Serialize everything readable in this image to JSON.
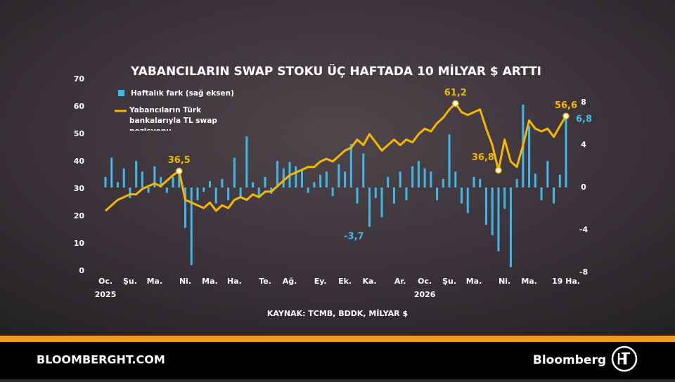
{
  "chart_data": {
    "type": "bar_line",
    "title": "YABANCILARIN SWAP STOKU ÜÇ HAFTADA 10 MİLYAR $ ARTTI",
    "source": "KAYNAK: TCMB, BDDK, MİLYAR $",
    "categories": [
      "Oc.\n2025",
      null,
      null,
      null,
      "Şu.",
      null,
      null,
      null,
      "Ma.",
      null,
      null,
      null,
      null,
      "Ni.",
      null,
      null,
      null,
      "Ma.",
      null,
      null,
      null,
      "Ha.",
      null,
      null,
      null,
      null,
      "Te.",
      null,
      null,
      null,
      "Ağ.",
      null,
      null,
      null,
      null,
      "Ey.",
      null,
      null,
      null,
      "Ek.",
      null,
      null,
      null,
      "Ka.",
      null,
      null,
      null,
      null,
      "Ar.",
      null,
      null,
      null,
      "Oc.\n2026",
      null,
      null,
      null,
      "Şu.",
      null,
      null,
      null,
      "Ma.",
      null,
      null,
      null,
      null,
      "Ni.",
      null,
      null,
      null,
      "Ma.",
      null,
      null,
      null,
      null,
      null,
      "19 Ha."
    ],
    "series": [
      {
        "name": "Haftalık fark (sağ eksen)",
        "kind": "bar",
        "axis": "y2",
        "color": "#3fb8ea",
        "values": [
          1,
          2.8,
          0.5,
          1.8,
          -1,
          2.5,
          1.5,
          -0.5,
          2,
          1,
          -0.5,
          1,
          1.5,
          -3.8,
          -7.3,
          -1.2,
          -0.4,
          0.6,
          -1.5,
          0.8,
          -1.2,
          2.8,
          -1,
          4.8,
          0.5,
          -0.8,
          1,
          -0.6,
          2.5,
          1.8,
          2.4,
          2,
          1.6,
          -0.5,
          0.5,
          1.2,
          1.5,
          -0.8,
          2.2,
          1.5,
          4.1,
          -1.5,
          3.2,
          -3.7,
          -1,
          -2.8,
          1,
          -1.5,
          1.5,
          -1.2,
          2,
          2.5,
          1.8,
          1.5,
          -1.2,
          0.8,
          5,
          1.5,
          -1.5,
          -2.4,
          1,
          0.8,
          -3.5,
          -4.5,
          -6,
          -2,
          -7.5,
          0.8,
          7.8,
          5.8,
          1.3,
          -1.2,
          2.5,
          -1.5,
          1.2,
          6.8
        ],
        "value_labels": [
          null,
          null,
          null,
          null,
          null,
          null,
          null,
          null,
          null,
          null,
          null,
          null,
          null,
          null,
          null,
          null,
          null,
          null,
          null,
          null,
          null,
          null,
          null,
          null,
          null,
          null,
          null,
          null,
          null,
          null,
          null,
          null,
          null,
          null,
          null,
          null,
          null,
          null,
          null,
          null,
          null,
          null,
          null,
          "-3,7",
          null,
          null,
          null,
          null,
          null,
          null,
          null,
          null,
          null,
          null,
          null,
          null,
          null,
          null,
          null,
          null,
          null,
          null,
          null,
          null,
          null,
          null,
          null,
          null,
          null,
          null,
          null,
          null,
          null,
          null,
          null,
          "6,8"
        ]
      },
      {
        "name": "Yabancıların Türk bankalarıyla TL swap pozisyonu",
        "kind": "line",
        "color": "#f5b700",
        "values": [
          22,
          24,
          26,
          27,
          28,
          28,
          30,
          31,
          32,
          31,
          33,
          35,
          36.5,
          26,
          25,
          24,
          23,
          25,
          22,
          24,
          23,
          26,
          27,
          26,
          28,
          27,
          29,
          29,
          31,
          33,
          35,
          36,
          37,
          38,
          38,
          40,
          41,
          40,
          42,
          44,
          45,
          48,
          46,
          50,
          47,
          44,
          46,
          48,
          46,
          48,
          47,
          50,
          52,
          51,
          54,
          56,
          59,
          61.2,
          58,
          57,
          58,
          59,
          52,
          46,
          36.8,
          48,
          40,
          38,
          46,
          55,
          52,
          51,
          52,
          49,
          53,
          56.6
        ],
        "value_labels": [
          null,
          null,
          null,
          null,
          null,
          null,
          null,
          null,
          null,
          null,
          null,
          null,
          "36,5",
          null,
          null,
          null,
          null,
          null,
          null,
          null,
          null,
          null,
          null,
          null,
          null,
          null,
          null,
          null,
          null,
          null,
          null,
          null,
          null,
          null,
          null,
          null,
          null,
          null,
          null,
          null,
          null,
          null,
          null,
          null,
          null,
          null,
          null,
          null,
          null,
          null,
          null,
          null,
          null,
          null,
          null,
          null,
          null,
          "61,2",
          null,
          null,
          null,
          null,
          null,
          null,
          "36,8",
          null,
          null,
          null,
          null,
          null,
          null,
          null,
          null,
          null,
          null,
          "56,6"
        ]
      }
    ],
    "ylim": [
      0,
      70
    ],
    "yticks": [
      0,
      10,
      20,
      30,
      40,
      50,
      60,
      70
    ],
    "y2lim": [
      -8,
      8
    ],
    "y2ticks": [
      -8,
      -4,
      0,
      4,
      8
    ]
  },
  "footer": {
    "site": "BLOOMBERGHT.COM",
    "brand": "Bloomberg"
  }
}
